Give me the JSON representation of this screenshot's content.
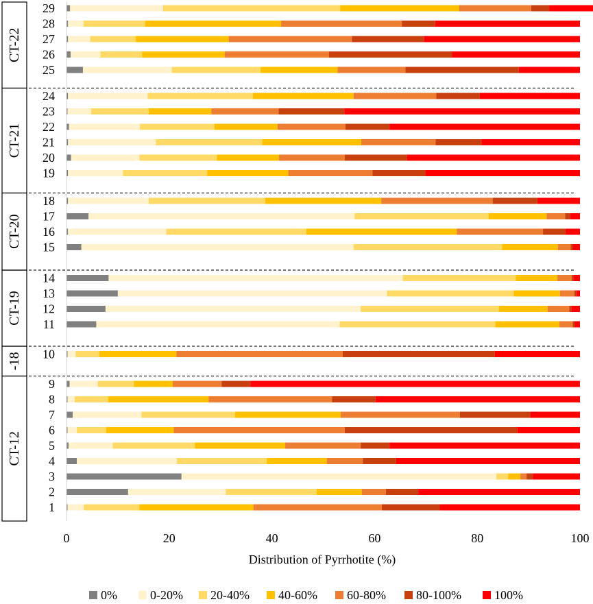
{
  "chart_data": {
    "type": "bar",
    "orientation": "horizontal",
    "stacked": true,
    "xlabel": "Distribution of Pyrrhotite (%)",
    "xlim": [
      0,
      100
    ],
    "xticks": [
      "0",
      "20",
      "40",
      "60",
      "80",
      "100"
    ],
    "legend_position": "bottom",
    "series": [
      {
        "name": "0%",
        "color": "#808080"
      },
      {
        "name": "0-20%",
        "color": "#FFF2CC"
      },
      {
        "name": "20-40%",
        "color": "#FFD966"
      },
      {
        "name": "40-60%",
        "color": "#FFC000"
      },
      {
        "name": "60-80%",
        "color": "#ED7D31"
      },
      {
        "name": "80-100%",
        "color": "#C9400F"
      },
      {
        "name": "100%",
        "color": "#FF0000"
      }
    ],
    "groups": [
      {
        "label": "CT-22",
        "rows": [
          {
            "label": "29",
            "values": [
              0.7,
              18.1,
              34.5,
              23.2,
              14.0,
              3.5,
              9.5
            ]
          },
          {
            "label": "28",
            "values": [
              0.3,
              3.0,
              12.0,
              26.5,
              23.5,
              6.5,
              28.2
            ]
          },
          {
            "label": "27",
            "values": [
              0.3,
              4.3,
              8.9,
              18.1,
              24.0,
              14.0,
              30.4
            ]
          },
          {
            "label": "26",
            "values": [
              0.8,
              5.8,
              8.1,
              16.1,
              20.3,
              24.0,
              24.9
            ]
          },
          {
            "label": "25",
            "values": [
              3.2,
              17.3,
              17.3,
              15.0,
              13.2,
              22.1,
              11.9
            ]
          }
        ]
      },
      {
        "label": "CT-21",
        "rows": [
          {
            "label": "24",
            "values": [
              0.3,
              15.5,
              20.5,
              19.6,
              16.1,
              8.5,
              19.5
            ]
          },
          {
            "label": "23",
            "values": [
              0.2,
              4.6,
              11.2,
              12.2,
              13.1,
              12.8,
              45.9
            ]
          },
          {
            "label": "22",
            "values": [
              0.5,
              13.8,
              14.5,
              12.3,
              13.2,
              8.6,
              37.1
            ]
          },
          {
            "label": "21",
            "values": [
              0.3,
              17.1,
              20.7,
              19.3,
              14.5,
              8.9,
              19.2
            ]
          },
          {
            "label": "20",
            "values": [
              0.9,
              13.3,
              15.1,
              12.1,
              12.8,
              12.1,
              33.7
            ]
          },
          {
            "label": "19",
            "values": [
              0.3,
              10.7,
              16.4,
              15.8,
              16.4,
              10.3,
              30.1
            ]
          }
        ]
      },
      {
        "label": "CT-20",
        "rows": [
          {
            "label": "18",
            "values": [
              0.3,
              15.7,
              22.7,
              22.6,
              21.7,
              8.7,
              8.3
            ]
          },
          {
            "label": "17",
            "values": [
              4.3,
              51.8,
              26.1,
              11.3,
              3.6,
              1.0,
              1.9
            ]
          },
          {
            "label": "16",
            "values": [
              0.3,
              19.1,
              27.3,
              29.3,
              16.8,
              4.4,
              2.8
            ]
          },
          {
            "label": "15",
            "values": [
              2.9,
              53.0,
              28.9,
              10.9,
              2.5,
              0.4,
              1.4
            ]
          }
        ]
      },
      {
        "label": "CT-19",
        "rows": [
          {
            "label": "14",
            "values": [
              8.2,
              57.3,
              22.0,
              8.1,
              2.8,
              0.3,
              1.3
            ]
          },
          {
            "label": "13",
            "values": [
              10.0,
              52.4,
              24.7,
              9.0,
              2.8,
              0.4,
              0.7
            ]
          },
          {
            "label": "12",
            "values": [
              7.6,
              49.7,
              26.9,
              9.5,
              4.2,
              0.4,
              1.7
            ]
          },
          {
            "label": "11",
            "values": [
              5.8,
              47.4,
              30.3,
              12.5,
              2.6,
              0.4,
              1.0
            ]
          }
        ]
      },
      {
        "label": "-18",
        "rows": [
          {
            "label": "10",
            "values": [
              0.2,
              1.6,
              4.6,
              15.0,
              32.4,
              29.6,
              16.6
            ]
          }
        ]
      },
      {
        "label": "CT-12",
        "rows": [
          {
            "label": "9",
            "values": [
              0.6,
              5.5,
              7.0,
              7.6,
              9.5,
              5.6,
              64.2
            ]
          },
          {
            "label": "8",
            "values": [
              0.2,
              1.4,
              6.5,
              19.6,
              24.0,
              8.5,
              39.8
            ]
          },
          {
            "label": "7",
            "values": [
              1.2,
              13.4,
              18.2,
              20.6,
              23.2,
              13.7,
              9.7
            ]
          },
          {
            "label": "6",
            "values": [
              0.2,
              1.8,
              5.7,
              13.2,
              33.3,
              33.6,
              12.2
            ]
          },
          {
            "label": "5",
            "values": [
              0.4,
              8.6,
              16.0,
              17.6,
              14.7,
              5.6,
              37.1
            ]
          },
          {
            "label": "4",
            "values": [
              2.0,
              19.5,
              17.5,
              11.7,
              7.0,
              6.5,
              35.8
            ]
          },
          {
            "label": "3",
            "values": [
              22.4,
              61.3,
              2.3,
              2.4,
              1.2,
              1.2,
              9.2
            ]
          },
          {
            "label": "2",
            "values": [
              12.0,
              19.0,
              17.7,
              8.8,
              4.7,
              6.3,
              31.5
            ]
          },
          {
            "label": "1",
            "values": [
              0.2,
              3.2,
              10.8,
              22.2,
              25.0,
              11.3,
              27.3
            ]
          }
        ]
      }
    ]
  }
}
